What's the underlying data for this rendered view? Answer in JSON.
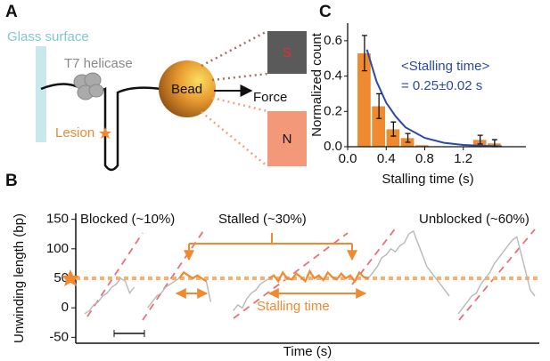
{
  "diagram": {
    "panel_label": "A",
    "glass": "Glass surface",
    "helicase": "T7 helicase",
    "lesion": "Lesion",
    "bead": "Bead",
    "force": "Force",
    "south": "S",
    "north": "N"
  },
  "chart_data": [
    {
      "type": "line",
      "panel_label": "B",
      "y_label": "Unwinding length (bp)",
      "x_label": "Time (s)",
      "ylim": [
        -60,
        160
      ],
      "yticks": [
        -50,
        0,
        50,
        100,
        150
      ],
      "reference_line": {
        "value": 50,
        "color": "#f8b070"
      },
      "annotations": [
        "Blocked (~10%)",
        "Stalled (~30%)",
        "Unblocked (~60%)",
        "Stalling time"
      ],
      "series": [
        {
          "color": "#b8b8b8",
          "values": [
            null,
            -10,
            -5,
            5,
            10,
            20,
            25,
            35,
            40,
            50,
            45,
            25,
            35,
            null,
            null,
            0,
            10,
            20,
            25,
            35,
            40,
            45,
            50,
            60,
            55,
            50,
            55,
            50,
            45,
            10,
            null,
            null,
            null,
            null,
            -5,
            5,
            0,
            15,
            25,
            30,
            40,
            45,
            50,
            55,
            45,
            60,
            50,
            48,
            58,
            52,
            45,
            62,
            50,
            55,
            47,
            60,
            52,
            48,
            58,
            50,
            55,
            45,
            60,
            52,
            50,
            60,
            70,
            85,
            90,
            100,
            95,
            105,
            110,
            125,
            130,
            110,
            90,
            70,
            60,
            50,
            40,
            30,
            20,
            null,
            -10,
            0,
            10,
            20,
            25,
            40,
            50,
            60,
            75,
            85,
            95,
            105,
            115,
            120,
            90,
            60,
            30,
            20
          ]
        },
        {
          "color": "#f08a30",
          "values": [
            null,
            null,
            null,
            null,
            null,
            null,
            null,
            null,
            null,
            null,
            null,
            null,
            null,
            null,
            null,
            null,
            null,
            null,
            null,
            null,
            null,
            null,
            50,
            60,
            55,
            50,
            55,
            50,
            45,
            null,
            null,
            null,
            null,
            null,
            null,
            null,
            null,
            null,
            null,
            null,
            null,
            null,
            50,
            55,
            45,
            60,
            50,
            48,
            58,
            52,
            45,
            62,
            50,
            55,
            47,
            60,
            52,
            48,
            58,
            50,
            55,
            45,
            60,
            52,
            50,
            null,
            null,
            null,
            null,
            null,
            null,
            null,
            null,
            null,
            null,
            null,
            null,
            null,
            null,
            null,
            null,
            null,
            null,
            null,
            null,
            null,
            null,
            null,
            null,
            null,
            null,
            null,
            null,
            null,
            null,
            null,
            null,
            null,
            null,
            null,
            null,
            null
          ]
        }
      ]
    },
    {
      "type": "histogram",
      "panel_label": "C",
      "y_label": "Normalized count",
      "x_label": "Stalling time (s)",
      "bins": [
        0.1,
        0.25,
        0.4,
        0.55,
        0.7,
        0.85,
        1.0,
        1.15,
        1.3,
        1.45,
        1.6
      ],
      "values": [
        0.53,
        0.23,
        0.1,
        0.05,
        0.01,
        0,
        0,
        0,
        0.04,
        0.02
      ],
      "errors": [
        0.1,
        0.07,
        0.04,
        0.025,
        null,
        null,
        null,
        null,
        0.025,
        0.02
      ],
      "color": "#f08a30",
      "xlim": [
        0,
        1.85
      ],
      "xticks": [
        {
          "value": 0,
          "label": "0.0"
        },
        0.4,
        0.8,
        1.2
      ],
      "ylim": [
        0,
        0.7
      ],
      "yticks": [
        {
          "value": 0,
          "label": "0.0"
        },
        0.2,
        0.4,
        0.6
      ],
      "fit": {
        "color": "#2a4aa8",
        "x": [
          0.2,
          0.3,
          0.4,
          0.5,
          0.6,
          0.8,
          1.0,
          1.2,
          1.4,
          1.6
        ],
        "values": [
          0.55,
          0.37,
          0.25,
          0.17,
          0.11,
          0.05,
          0.022,
          0.01,
          0.005,
          0.002
        ]
      },
      "annotations": [
        "<Stalling time>",
        "= 0.25±0.02 s"
      ]
    }
  ]
}
